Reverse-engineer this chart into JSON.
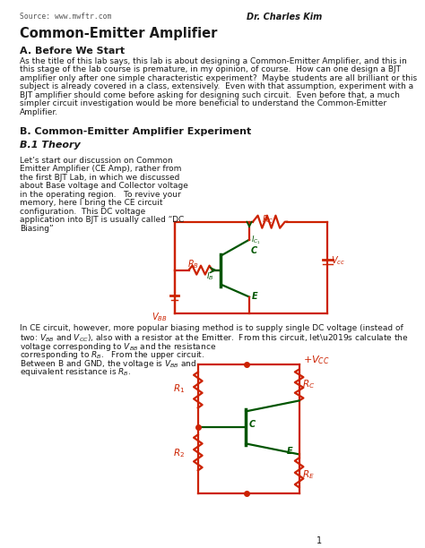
{
  "title": "Common-Emitter Amplifier",
  "source": "Source: www.mwftr.com",
  "author": "Dr. Charles Kim",
  "section_a": "A. Before We Start",
  "para_a_lines": [
    "As the title of this lab says, this lab is about designing a Common-Emitter Amplifier, and this in",
    "this stage of the lab course is premature, in my opinion, of course.  How can one design a BJT",
    "amplifier only after one simple characteristic experiment?  Maybe students are all brilliant or this",
    "subject is already covered in a class, extensively.  Even with that assumption, experiment with a",
    "BJT amplifier should come before asking for designing such circuit.  Even before that, a much",
    "simpler circuit investigation would be more beneficial to understand the Common-Emitter",
    "Amplifier."
  ],
  "section_b": "B. Common-Emitter Amplifier Experiment",
  "section_b1": "B.1 Theory",
  "para_b1_lines": [
    "Let’s start our discussion on Common",
    "Emitter Amplifier (CE Amp), rather from",
    "the first BJT Lab, in which we discussed",
    "about Base voltage and Collector voltage",
    "in the operating region.   To revive your",
    "memory, here I bring the CE circuit",
    "configuration.  This DC voltage",
    "application into BJT is usually called “DC",
    "Biasing”"
  ],
  "para_b2_line1": "In CE circuit, however, more popular biasing method is to supply single DC voltage (instead of",
  "para_b2_line2": "two: V",
  "para_b2_line2b": "BB",
  "para_b2_line2c": " and V",
  "para_b2_line2d": "CC",
  "para_b2_line2e": "), also with a resistor at the Emitter.  From this circuit, let’s calculate the",
  "para_b2_lines_rest": [
    "voltage corresponding to V",
    "BB",
    " and the resistance",
    "corresponding to R",
    "B",
    ".   From the upper circuit.",
    "Between B and GND, the voltage is V",
    "BB",
    " and",
    "equivalent resistance is R",
    "B",
    "."
  ],
  "page_num": "1",
  "bg_color": "#ffffff",
  "text_color": "#1a1a1a",
  "red_color": "#cc2200",
  "green_color": "#005500"
}
